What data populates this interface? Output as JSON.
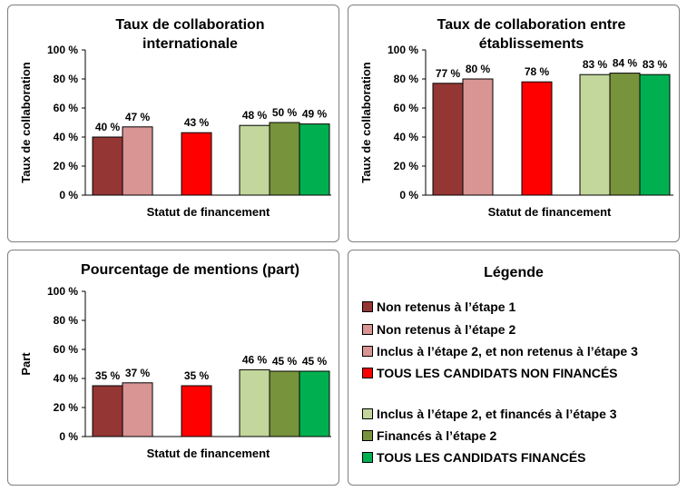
{
  "colors": {
    "non_retenus_1": "#943634",
    "non_retenus_2": "#d99594",
    "tous_non_finances": "#ff0000",
    "finances_etape3": "#c3d69b",
    "finances_etape2": "#77933c",
    "tous_finances": "#00b050"
  },
  "chart_data": [
    {
      "type": "bar",
      "title": [
        "Taux de collaboration",
        "internationale"
      ],
      "xlabel": "Statut de financement",
      "ylabel": "Taux de collaboration",
      "ylim": [
        0,
        100
      ],
      "yticks": [
        "0 %",
        "20 %",
        "40 %",
        "60 %",
        "80 %",
        "100 %"
      ],
      "grid": false,
      "values": [
        40,
        47,
        43,
        48,
        50,
        49
      ],
      "labels": [
        "40 %",
        "47 %",
        "43 %",
        "48 %",
        "50 %",
        "49 %"
      ]
    },
    {
      "type": "bar",
      "title": [
        "Taux de collaboration  entre",
        "établissements"
      ],
      "xlabel": "Statut de financement",
      "ylabel": "Taux de collaboration",
      "ylim": [
        0,
        100
      ],
      "yticks": [
        "0 %",
        "20 %",
        "40 %",
        "60 %",
        "80 %",
        "100 %"
      ],
      "grid": false,
      "values": [
        77,
        80,
        78,
        83,
        84,
        83
      ],
      "labels": [
        "77 %",
        "80 %",
        "78 %",
        "83 %",
        "84 %",
        "83 %"
      ]
    },
    {
      "type": "bar",
      "title": [
        "Pourcentage de mentions (part)"
      ],
      "xlabel": "Statut de financement",
      "ylabel": "Part",
      "ylim": [
        0,
        100
      ],
      "yticks": [
        "0 %",
        "20 %",
        "40 %",
        "60 %",
        "80 %",
        "100 %"
      ],
      "grid": false,
      "values": [
        35,
        37,
        35,
        46,
        45,
        45
      ],
      "labels": [
        "35 %",
        "37 %",
        "35 %",
        "46 %",
        "45 %",
        "45 %"
      ]
    }
  ],
  "legend": {
    "title": "Légende",
    "items": [
      {
        "label": "Non retenus à l’étape 1",
        "color": "#943634"
      },
      {
        "label": "Non retenus à l’étape 2",
        "color": "#d99594"
      },
      {
        "label": "Inclus à l’étape 2, et non retenus à l’étape 3",
        "color": "#d99594"
      },
      {
        "label": "TOUS LES CANDIDATS NON FINANCÉS",
        "color": "#ff0000"
      },
      {
        "label": "Inclus à l’étape 2, et financés à l’étape 3",
        "color": "#c3d69b"
      },
      {
        "label": "Financés à l’étape 2",
        "color": "#77933c"
      },
      {
        "label": "TOUS LES CANDIDATS FINANCÉS",
        "color": "#00b050"
      }
    ]
  }
}
